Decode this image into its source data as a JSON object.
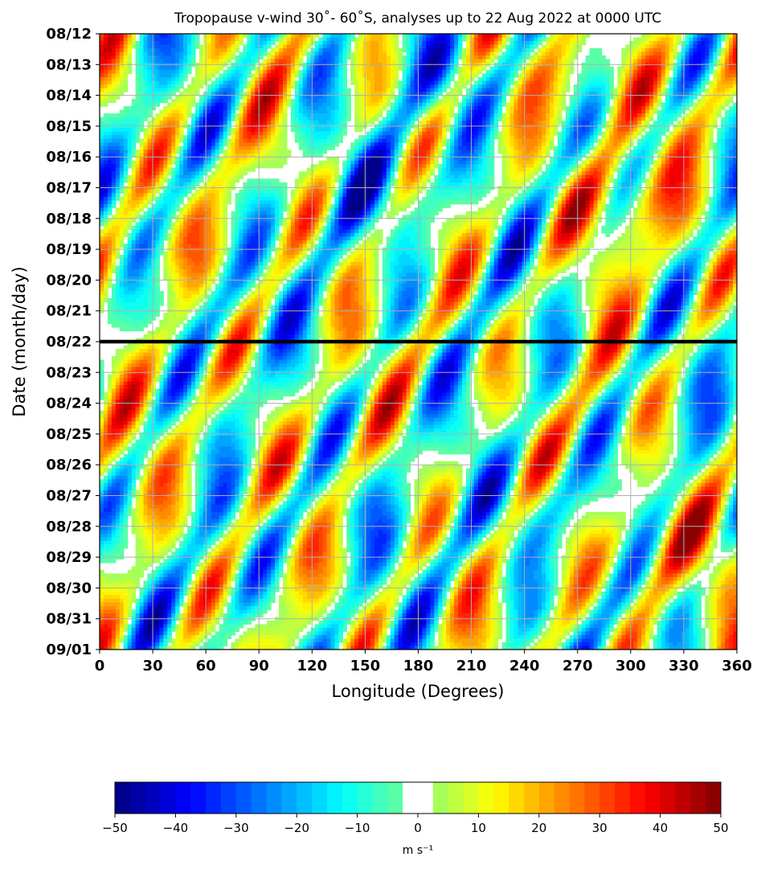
{
  "chart_data": {
    "type": "heatmap",
    "title": "Tropopause v-wind 30˚- 60˚S, analyses up to 22 Aug 2022 at 0000 UTC",
    "xlabel": "Longitude (Degrees)",
    "ylabel": "Date (month/day)",
    "x_ticks": [
      "0",
      "30",
      "60",
      "90",
      "120",
      "150",
      "180",
      "210",
      "240",
      "270",
      "300",
      "330",
      "360"
    ],
    "xlim": [
      0,
      360
    ],
    "y_ticks": [
      "08/12",
      "08/13",
      "08/14",
      "08/15",
      "08/16",
      "08/17",
      "08/18",
      "08/19",
      "08/20",
      "08/21",
      "08/22",
      "08/23",
      "08/24",
      "08/25",
      "08/26",
      "08/27",
      "08/28",
      "08/29",
      "08/30",
      "08/31",
      "09/01"
    ],
    "grid": true,
    "analysis_cutoff": "08/22",
    "colorbar": {
      "label": "m s⁻¹",
      "ticks": [
        "−50",
        "−40",
        "−30",
        "−20",
        "−10",
        "0",
        "10",
        "20",
        "30",
        "40",
        "50"
      ],
      "range": [
        -50,
        50
      ],
      "step": 2.5,
      "white_band": [
        -2.5,
        2.5
      ]
    },
    "colormap": "jet",
    "features": [
      {
        "lon": 210,
        "day": 1.5,
        "value": -40
      },
      {
        "lon": 270,
        "day": 1.5,
        "value": 45
      },
      {
        "lon": 20,
        "day": 8,
        "value": 45
      },
      {
        "lon": 45,
        "day": 8.5,
        "value": -40
      },
      {
        "lon": 290,
        "day": 5.5,
        "value": 45
      },
      {
        "lon": 170,
        "day": 5,
        "value": -40
      },
      {
        "lon": 120,
        "day": 15,
        "value": -40
      },
      {
        "lon": 100,
        "day": 14.5,
        "value": 35
      },
      {
        "lon": 315,
        "day": 16.5,
        "value": 45
      },
      {
        "lon": 250,
        "day": 15.5,
        "value": -35
      }
    ]
  }
}
